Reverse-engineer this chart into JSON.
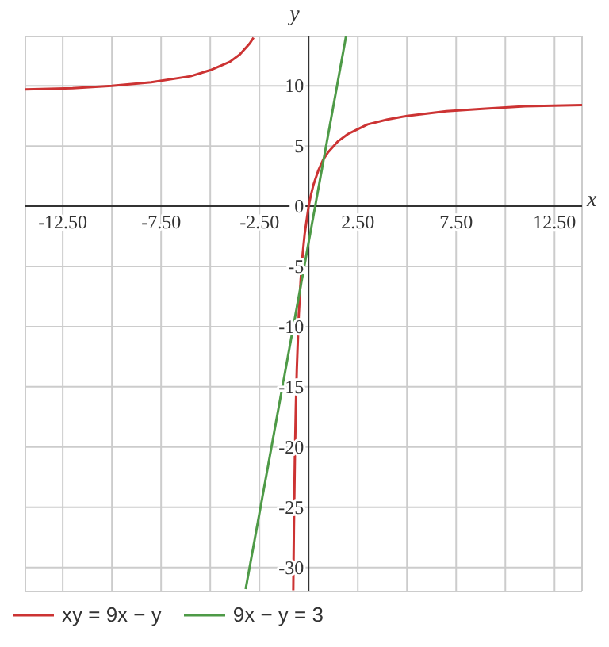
{
  "chart_data": {
    "type": "line",
    "xlabel": "x",
    "ylabel": "y",
    "xlim": [
      -14.4,
      13.9
    ],
    "ylim": [
      -32,
      14.1
    ],
    "xticks": [
      {
        "value": -12.5,
        "label": "-12.50"
      },
      {
        "value": -10,
        "label": null
      },
      {
        "value": -7.5,
        "label": "-7.50"
      },
      {
        "value": -5,
        "label": null
      },
      {
        "value": -2.5,
        "label": "-2.50"
      },
      {
        "value": 2.5,
        "label": "2.50"
      },
      {
        "value": 5,
        "label": null
      },
      {
        "value": 7.5,
        "label": "7.50"
      },
      {
        "value": 10,
        "label": null
      },
      {
        "value": 12.5,
        "label": "12.50"
      }
    ],
    "yticks": [
      10,
      5,
      0,
      -5,
      -10,
      -15,
      -20,
      -25,
      -30
    ],
    "grid": true,
    "legend": "bottom left",
    "marker": "none",
    "line_style": "solid",
    "series": [
      {
        "name": "xy = 9x − y",
        "color": "#cc3333",
        "x": [
          -14.4,
          -12,
          -10,
          -8,
          -6,
          -5,
          -4,
          -3.5,
          -3,
          -2.8,
          -1,
          -0.78,
          -0.77,
          -0.75,
          -0.7,
          -0.65,
          -0.6,
          -0.5,
          -0.4,
          -0.3,
          -0.2,
          0,
          0.1,
          0.25,
          0.5,
          0.75,
          1,
          1.5,
          2,
          2.5,
          3,
          4,
          5,
          7,
          9,
          11,
          13.9
        ],
        "values": [
          9.7,
          9.8,
          10,
          10.3,
          10.8,
          11.3,
          12,
          12.6,
          13.5,
          14,
          null,
          -31.9,
          -30.1,
          -27,
          -21,
          -16.7,
          -13.5,
          -9,
          -6,
          -3.9,
          -2.3,
          0,
          0.8,
          1.8,
          3,
          3.9,
          4.5,
          5.4,
          6,
          6.4,
          6.8,
          7.2,
          7.5,
          7.9,
          8.1,
          8.3,
          8.4
        ]
      },
      {
        "name": "9x − y = 3",
        "color": "#4e9a47",
        "x": [
          -3.2,
          1.9
        ],
        "values": [
          -31.8,
          14.1
        ]
      }
    ]
  }
}
